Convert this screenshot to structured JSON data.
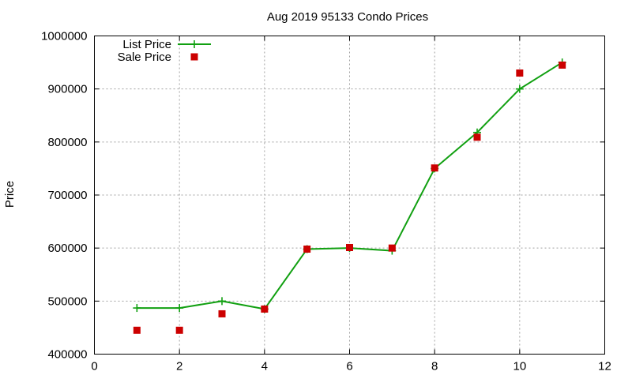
{
  "chart_data": {
    "type": "line",
    "title": "Aug 2019 95133 Condo Prices",
    "xlabel": "",
    "ylabel": "Price",
    "xlim": [
      0,
      12
    ],
    "ylim": [
      400000,
      1000000
    ],
    "x_ticks": [
      0,
      2,
      4,
      6,
      8,
      10,
      12
    ],
    "y_ticks": [
      400000,
      500000,
      600000,
      700000,
      800000,
      900000,
      1000000
    ],
    "grid": true,
    "legend_position": "top-left",
    "series": [
      {
        "name": "List Price",
        "style": "line-plus",
        "color": "#11a011",
        "x": [
          1,
          2,
          3,
          4,
          5,
          6,
          7,
          8,
          9,
          10,
          11
        ],
        "values": [
          487000,
          487000,
          500000,
          485000,
          598000,
          600000,
          595000,
          750000,
          818000,
          900000,
          950000
        ]
      },
      {
        "name": "Sale Price",
        "style": "square",
        "color": "#cc0000",
        "x": [
          1,
          2,
          3,
          4,
          5,
          6,
          7,
          8,
          9,
          10,
          11
        ],
        "values": [
          445000,
          445000,
          476000,
          485000,
          598000,
          601000,
          600000,
          751000,
          809000,
          930000,
          945000
        ]
      }
    ]
  }
}
